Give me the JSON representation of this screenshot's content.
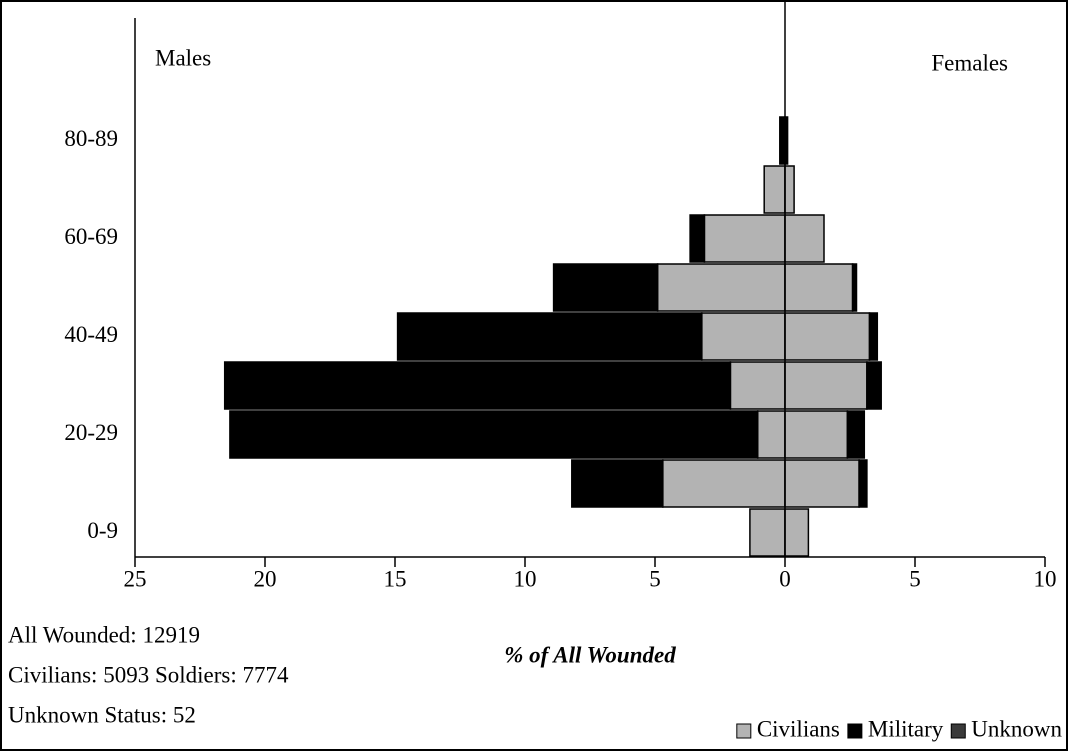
{
  "chart_data": {
    "type": "pyramid",
    "left_label": "Males",
    "right_label": "Females",
    "x_label": "% of All Wounded",
    "annotations": [
      "All Wounded: 12919",
      "Civilians: 5093  Soldiers: 7774",
      "Unknown Status: 52"
    ],
    "categories": [
      "0-9",
      null,
      "20-29",
      null,
      "40-49",
      null,
      "60-69",
      null,
      "80-89"
    ],
    "series": [
      {
        "name": "Civilians",
        "color": "#b3b3b3",
        "males": [
          1.35,
          4.7,
          1.05,
          2.1,
          3.2,
          4.9,
          3.1,
          0.8,
          0
        ],
        "females": [
          0.9,
          2.85,
          2.4,
          3.15,
          3.25,
          2.6,
          1.5,
          0.35,
          0
        ]
      },
      {
        "name": "Military",
        "color": "#000000",
        "males": [
          0,
          3.5,
          20.3,
          19.45,
          11.7,
          4.0,
          0.55,
          0,
          0.2
        ],
        "females": [
          0,
          0.3,
          0.65,
          0.55,
          0.3,
          0.15,
          0,
          0,
          0.1
        ]
      },
      {
        "name": "Unknown",
        "color": "#3a3a3a",
        "males": [
          0,
          0,
          0,
          0,
          0,
          0,
          0,
          0,
          0
        ],
        "females": [
          0,
          0,
          0,
          0,
          0,
          0,
          0,
          0,
          0
        ]
      }
    ],
    "xlim": [
      -25,
      10
    ],
    "xticks": [
      {
        "value": -25,
        "label": "25"
      },
      {
        "value": -20,
        "label": "20"
      },
      {
        "value": -15,
        "label": "15"
      },
      {
        "value": -10,
        "label": "10"
      },
      {
        "value": -5,
        "label": "5"
      },
      0,
      5,
      10
    ],
    "legend": "bottom-right"
  }
}
